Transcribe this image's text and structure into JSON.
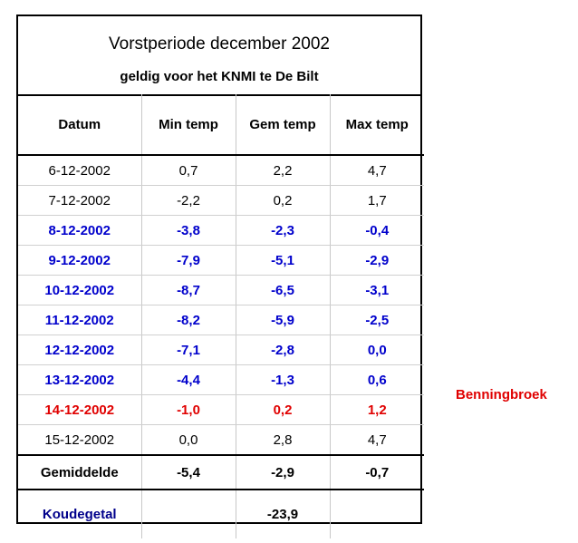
{
  "title": "Vorstperiode december 2002",
  "subtitle": "geldig voor het KNMI te De Bilt",
  "headers": [
    "Datum",
    "Min temp",
    "Gem temp",
    "Max temp"
  ],
  "rows": [
    {
      "date": "6-12-2002",
      "min": "0,7",
      "avg": "2,2",
      "max": "4,7"
    },
    {
      "date": "7-12-2002",
      "min": "-2,2",
      "avg": "0,2",
      "max": "1,7"
    },
    {
      "date": "8-12-2002",
      "min": "-3,8",
      "avg": "-2,3",
      "max": "-0,4"
    },
    {
      "date": "9-12-2002",
      "min": "-7,9",
      "avg": "-5,1",
      "max": "-2,9"
    },
    {
      "date": "10-12-2002",
      "min": "-8,7",
      "avg": "-6,5",
      "max": "-3,1"
    },
    {
      "date": "11-12-2002",
      "min": "-8,2",
      "avg": "-5,9",
      "max": "-2,5"
    },
    {
      "date": "12-12-2002",
      "min": "-7,1",
      "avg": "-2,8",
      "max": "0,0"
    },
    {
      "date": "13-12-2002",
      "min": "-4,4",
      "avg": "-1,3",
      "max": "0,6"
    },
    {
      "date": "14-12-2002",
      "min": "-1,0",
      "avg": "0,2",
      "max": "1,2"
    },
    {
      "date": "15-12-2002",
      "min": "0,0",
      "avg": "2,8",
      "max": "4,7"
    }
  ],
  "average": {
    "label": "Gemiddelde",
    "min": "-5,4",
    "avg": "-2,9",
    "max": "-0,7"
  },
  "koudegetal": {
    "label": "Koudegetal",
    "value": "-23,9"
  },
  "note": "Benningbroek",
  "colors": {
    "cold": "#0000cc",
    "highlight": "#e00000",
    "koudegetal_label": "#00008b"
  }
}
